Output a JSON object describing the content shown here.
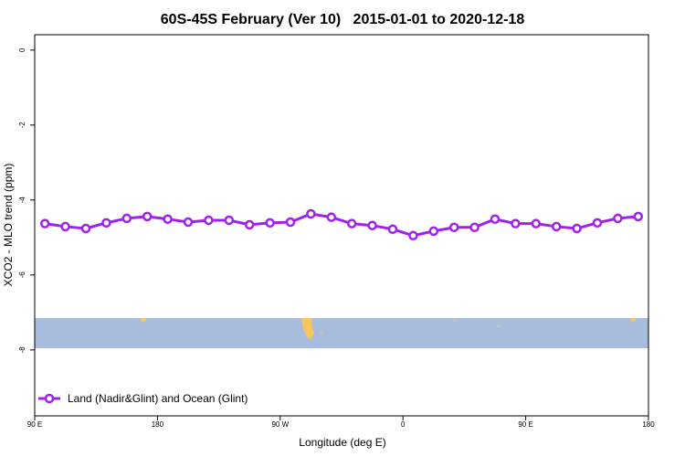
{
  "chart_data": {
    "type": "line",
    "title": "60S-45S February (Ver 10)   2015-01-01 to 2020-12-18",
    "x_label": "Longitude (deg E)",
    "y_label": "XCO2 - MLO trend (ppm)",
    "x": [
      97.5,
      112.5,
      127.5,
      142.5,
      157.5,
      172.5,
      187.5,
      202.5,
      217.5,
      232.5,
      247.5,
      262.5,
      277.5,
      292.5,
      307.5,
      322.5,
      337.5,
      352.5,
      367.5,
      382.5,
      397.5,
      412.5,
      427.5,
      442.5,
      457.5,
      472.5,
      487.5,
      502.5,
      517.5,
      532.5
    ],
    "series": [
      {
        "name": "Land (Nadir&Glint) and Ocean (Glint)",
        "color": "#a020f0",
        "values": [
          -4.63,
          -4.71,
          -4.76,
          -4.61,
          -4.49,
          -4.44,
          -4.51,
          -4.59,
          -4.54,
          -4.54,
          -4.66,
          -4.61,
          -4.59,
          -4.37,
          -4.46,
          -4.63,
          -4.68,
          -4.78,
          -4.95,
          -4.83,
          -4.73,
          -4.73,
          -4.51,
          -4.63,
          -4.63,
          -4.71,
          -4.76,
          -4.61,
          -4.49,
          -4.44
        ]
      }
    ],
    "xlim": [
      90,
      540
    ],
    "xticks": [
      {
        "value": 90,
        "label": "90 E"
      },
      180,
      {
        "value": 270,
        "label": "90 W"
      },
      {
        "value": 360,
        "label": "0"
      },
      {
        "value": 450,
        "label": "90 E"
      },
      {
        "value": 540,
        "label": "180"
      }
    ],
    "ylim": [
      -9.76,
      0.41
    ],
    "yticks": [
      0,
      -2,
      -4,
      -6,
      -8
    ],
    "legend": "bottom-left"
  }
}
